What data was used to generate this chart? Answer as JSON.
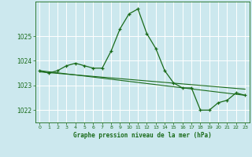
{
  "title": "Graphe pression niveau de la mer (hPa)",
  "bg_color": "#cce8ee",
  "grid_color": "#ffffff",
  "line_color": "#1a6b1a",
  "marker_color": "#1a6b1a",
  "xlim": [
    -0.5,
    23.5
  ],
  "ylim": [
    1021.5,
    1026.4
  ],
  "yticks": [
    1022,
    1023,
    1024,
    1025
  ],
  "xticks": [
    0,
    1,
    2,
    3,
    4,
    5,
    6,
    7,
    8,
    9,
    10,
    11,
    12,
    13,
    14,
    15,
    16,
    17,
    18,
    19,
    20,
    21,
    22,
    23
  ],
  "series1_x": [
    0,
    1,
    2,
    3,
    4,
    5,
    6,
    7,
    8,
    9,
    10,
    11,
    12,
    13,
    14,
    15,
    16,
    17,
    18,
    19,
    20,
    21,
    22,
    23
  ],
  "series1_y": [
    1023.6,
    1023.5,
    1023.6,
    1023.8,
    1023.9,
    1023.8,
    1023.7,
    1023.7,
    1024.4,
    1025.3,
    1025.9,
    1026.1,
    1025.1,
    1024.5,
    1023.6,
    1023.1,
    1022.9,
    1022.9,
    1022.0,
    1022.0,
    1022.3,
    1022.4,
    1022.7,
    1022.6
  ],
  "series2_x": [
    0,
    23
  ],
  "series2_y": [
    1023.6,
    1022.6
  ],
  "series3_x": [
    0,
    23
  ],
  "series3_y": [
    1023.55,
    1022.85
  ]
}
